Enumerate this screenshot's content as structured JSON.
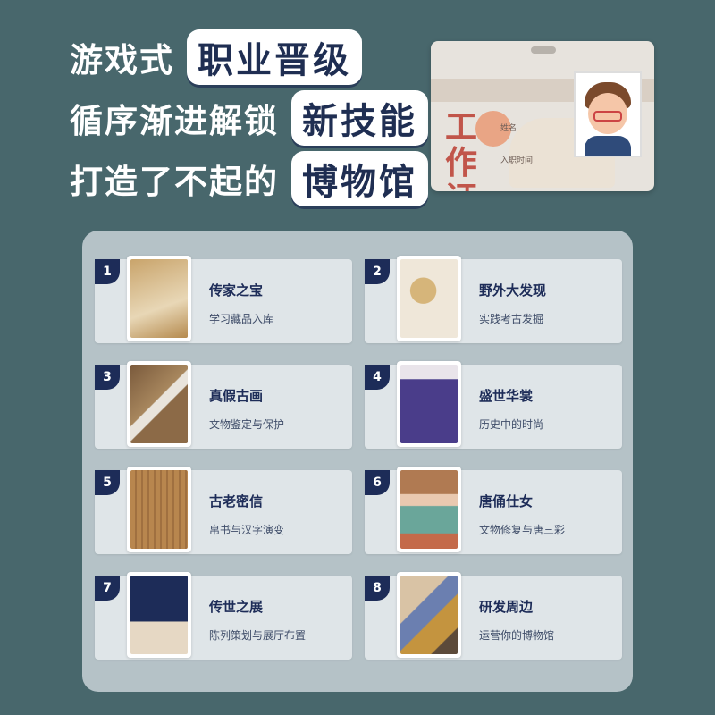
{
  "headlines": [
    {
      "plain": "游戏式",
      "highlight": "职业晋级"
    },
    {
      "plain": "循序渐进解锁",
      "highlight": "新技能"
    },
    {
      "plain": "打造了不起的",
      "highlight": "博物馆"
    }
  ],
  "badge": {
    "title": "工作证",
    "name_label": "姓名",
    "date_label": "入职时间"
  },
  "cards": [
    {
      "num": "1",
      "title": "传家之宝",
      "subtitle": "学习藏品入库"
    },
    {
      "num": "2",
      "title": "野外大发现",
      "subtitle": "实践考古发掘"
    },
    {
      "num": "3",
      "title": "真假古画",
      "subtitle": "文物鉴定与保护"
    },
    {
      "num": "4",
      "title": "盛世华裳",
      "subtitle": "历史中的时尚"
    },
    {
      "num": "5",
      "title": "古老密信",
      "subtitle": "帛书与汉字演变"
    },
    {
      "num": "6",
      "title": "唐俑仕女",
      "subtitle": "文物修复与唐三彩"
    },
    {
      "num": "7",
      "title": "传世之展",
      "subtitle": "陈列策划与展厅布置"
    },
    {
      "num": "8",
      "title": "研发周边",
      "subtitle": "运营你的博物馆"
    }
  ]
}
